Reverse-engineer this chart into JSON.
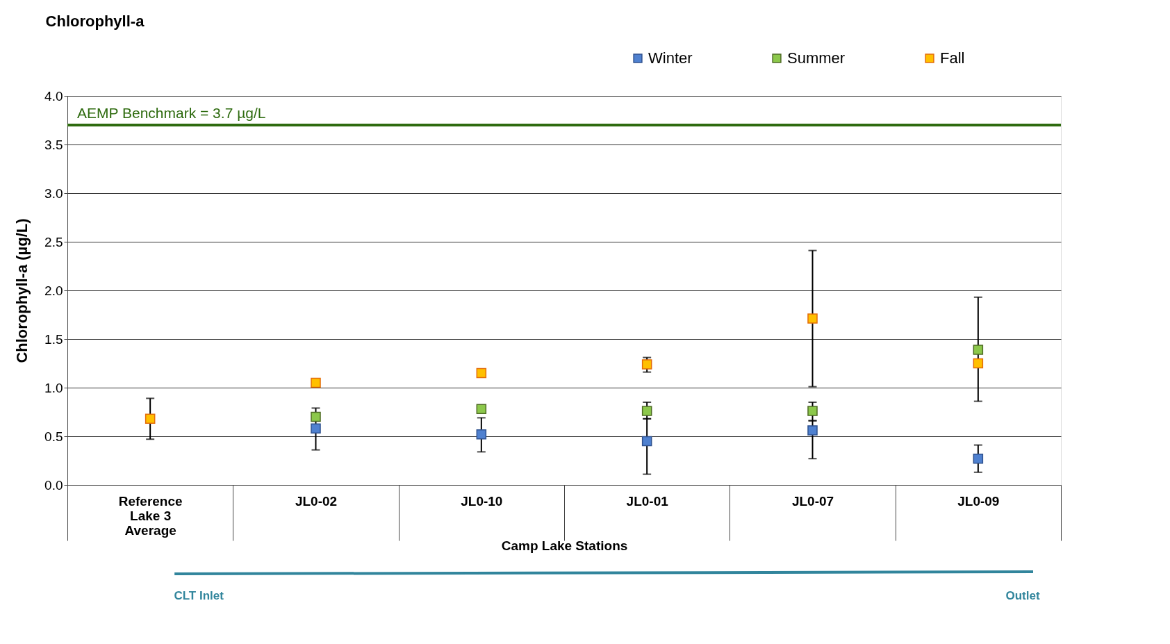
{
  "chart_data": {
    "type": "scatter",
    "title": "Chlorophyll-a",
    "ylabel": "Chlorophyll-a (µg/L)",
    "xlabel": "Camp Lake Stations",
    "categories": [
      "Reference Lake 3 Average",
      "JL0-02",
      "JL0-10",
      "JL0-01",
      "JL0-07",
      "JL0-09"
    ],
    "series": [
      {
        "name": "Winter",
        "color": "#4f81d0",
        "values": [
          null,
          0.58,
          0.52,
          0.45,
          0.56,
          0.27
        ],
        "errors": [
          null,
          [
            0.36,
            0.62
          ],
          [
            0.34,
            0.69
          ],
          [
            0.11,
            0.68
          ],
          [
            0.27,
            0.66
          ],
          [
            0.13,
            0.41
          ]
        ]
      },
      {
        "name": "Summer",
        "color": "#8cc84b",
        "values": [
          null,
          0.7,
          0.78,
          0.76,
          0.76,
          1.39
        ],
        "errors": [
          null,
          [
            0.62,
            0.79
          ],
          null,
          [
            0.68,
            0.85
          ],
          [
            0.66,
            0.85
          ],
          null
        ]
      },
      {
        "name": "Fall",
        "color": "#ffc000",
        "values": [
          0.68,
          1.05,
          1.15,
          1.24,
          1.71,
          1.25
        ],
        "errors": [
          [
            0.47,
            0.89
          ],
          null,
          null,
          [
            1.16,
            1.31
          ],
          [
            1.01,
            2.41
          ],
          [
            0.86,
            1.93
          ]
        ]
      }
    ],
    "ylim": [
      0,
      4
    ],
    "yticks": [
      {
        "value": 0,
        "label": "0.0"
      },
      0.5,
      {
        "value": 1,
        "label": "1.0"
      },
      1.5,
      {
        "value": 2,
        "label": "2.0"
      },
      2.5,
      {
        "value": 3,
        "label": "3.0"
      },
      3.5,
      {
        "value": 4,
        "label": "4.0"
      }
    ],
    "ref_lines": [
      {
        "axis": "y",
        "value": 3.7,
        "label": "AEMP Benchmark = 3.7 µg/L",
        "color": "#2e6b0f"
      }
    ],
    "annotations": [
      "CLT Inlet",
      "Outlet"
    ],
    "grid": "y",
    "legend": "top right",
    "marker": "square"
  }
}
